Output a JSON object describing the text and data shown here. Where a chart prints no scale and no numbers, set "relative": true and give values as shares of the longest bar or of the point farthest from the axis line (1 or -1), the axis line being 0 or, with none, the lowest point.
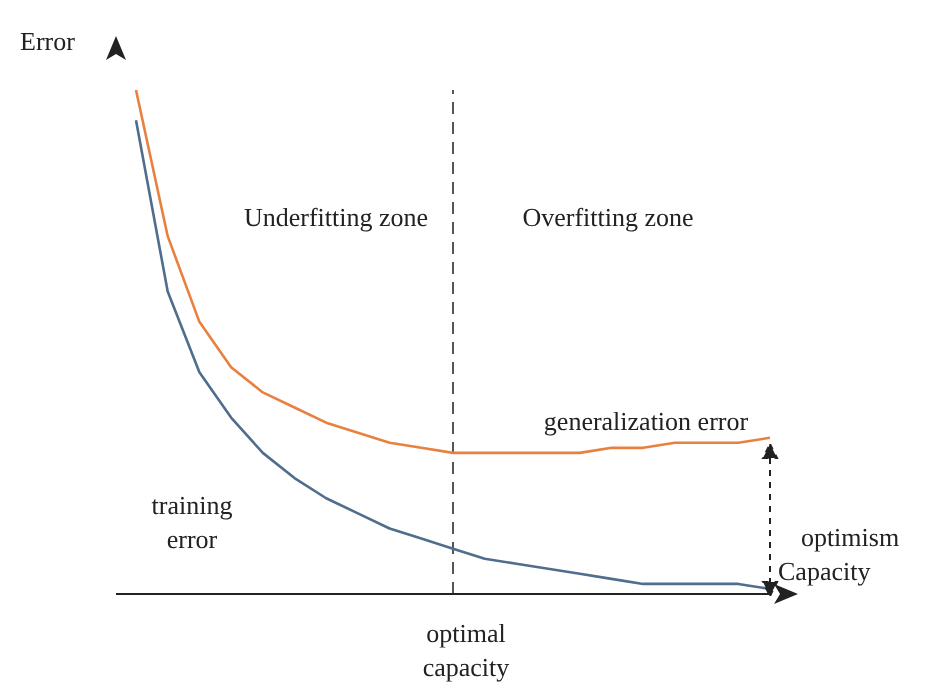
{
  "chart_data": {
    "type": "line",
    "relative": true,
    "xlabel": "Capacity",
    "ylabel": "Error",
    "categories": [
      null,
      null,
      null,
      null,
      null,
      null,
      null,
      null,
      null,
      null,
      null,
      null,
      null,
      null,
      null,
      null,
      null,
      null,
      null,
      null,
      null
    ],
    "series": [
      {
        "color": "#e8803f",
        "values": [
          1,
          0.71,
          0.54,
          0.45,
          0.4,
          0.37,
          0.34,
          0.32,
          0.3,
          0.29,
          0.28,
          0.28,
          0.28,
          0.28,
          0.28,
          0.29,
          0.29,
          0.3,
          0.3,
          0.3,
          0.31
        ]
      },
      {
        "color": "#4f6d8c",
        "values": [
          0.94,
          0.6,
          0.44,
          0.35,
          0.28,
          0.23,
          0.19,
          0.16,
          0.13,
          0.11,
          0.09,
          0.07,
          0.06,
          0.05,
          0.04,
          0.03,
          0.02,
          0.02,
          0.02,
          0.02,
          0.01
        ]
      }
    ],
    "annotations": [
      "Underfitting zone",
      "Overfitting zone",
      "generalization error",
      "training error",
      "optimism",
      "optimal capacity"
    ],
    "marker": "none",
    "line_style": "solid",
    "grid": false
  }
}
